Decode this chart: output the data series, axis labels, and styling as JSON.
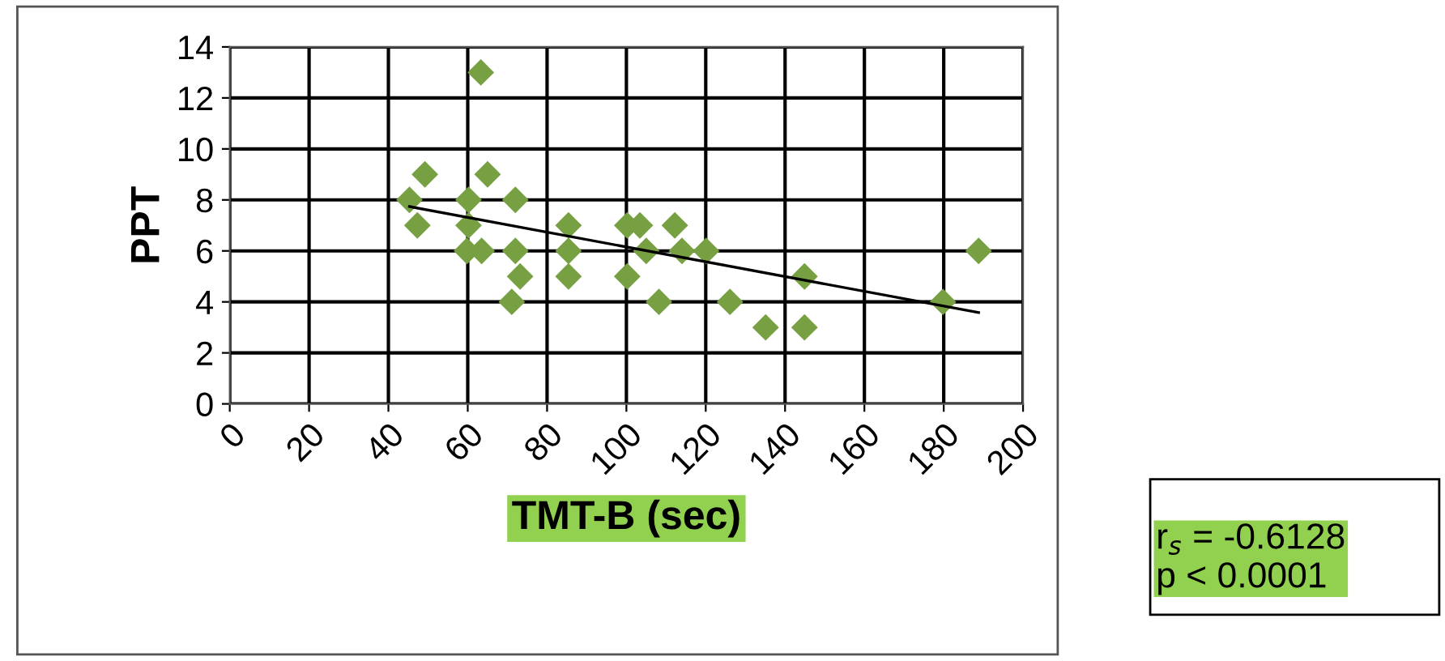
{
  "chart_data": {
    "type": "scatter",
    "xlabel": "TMT-B (sec)",
    "ylabel": "PPT",
    "series": [
      {
        "color": "#77a043",
        "marker": "diamond",
        "x": [
          63.3,
          45.3,
          49.2,
          47.3,
          60.2,
          65,
          72,
          60.2,
          59.8,
          63.5,
          72,
          73.2,
          71.1,
          85.4,
          85.4,
          85.4,
          100.2,
          103.4,
          105,
          100.2,
          112.2,
          114,
          120.1,
          108.2,
          126.1,
          135.1,
          144.9,
          144.9,
          179.8,
          188.8
        ],
        "values": [
          13,
          8,
          9,
          7,
          8,
          9,
          8,
          7,
          6,
          6,
          6,
          5,
          4,
          7,
          6,
          5,
          7,
          7,
          6,
          5,
          7,
          6,
          6,
          4,
          4,
          3,
          3,
          5,
          4,
          6
        ]
      },
      {
        "type": "line",
        "color": "#000000",
        "marker": "none",
        "x": [
          45.3,
          188.8
        ],
        "values": [
          7.74,
          3.58
        ]
      }
    ],
    "xlim": [
      0,
      200
    ],
    "xticks": [
      0,
      20,
      40,
      60,
      80,
      100,
      120,
      140,
      160,
      180,
      200
    ],
    "ylim": [
      0,
      14
    ],
    "yticks": [
      0,
      2,
      4,
      6,
      8,
      10,
      12,
      14
    ],
    "grid": true,
    "legend": false,
    "annotations": [
      "r$_{s}$ = -0.6128\np < 0.0001"
    ]
  }
}
